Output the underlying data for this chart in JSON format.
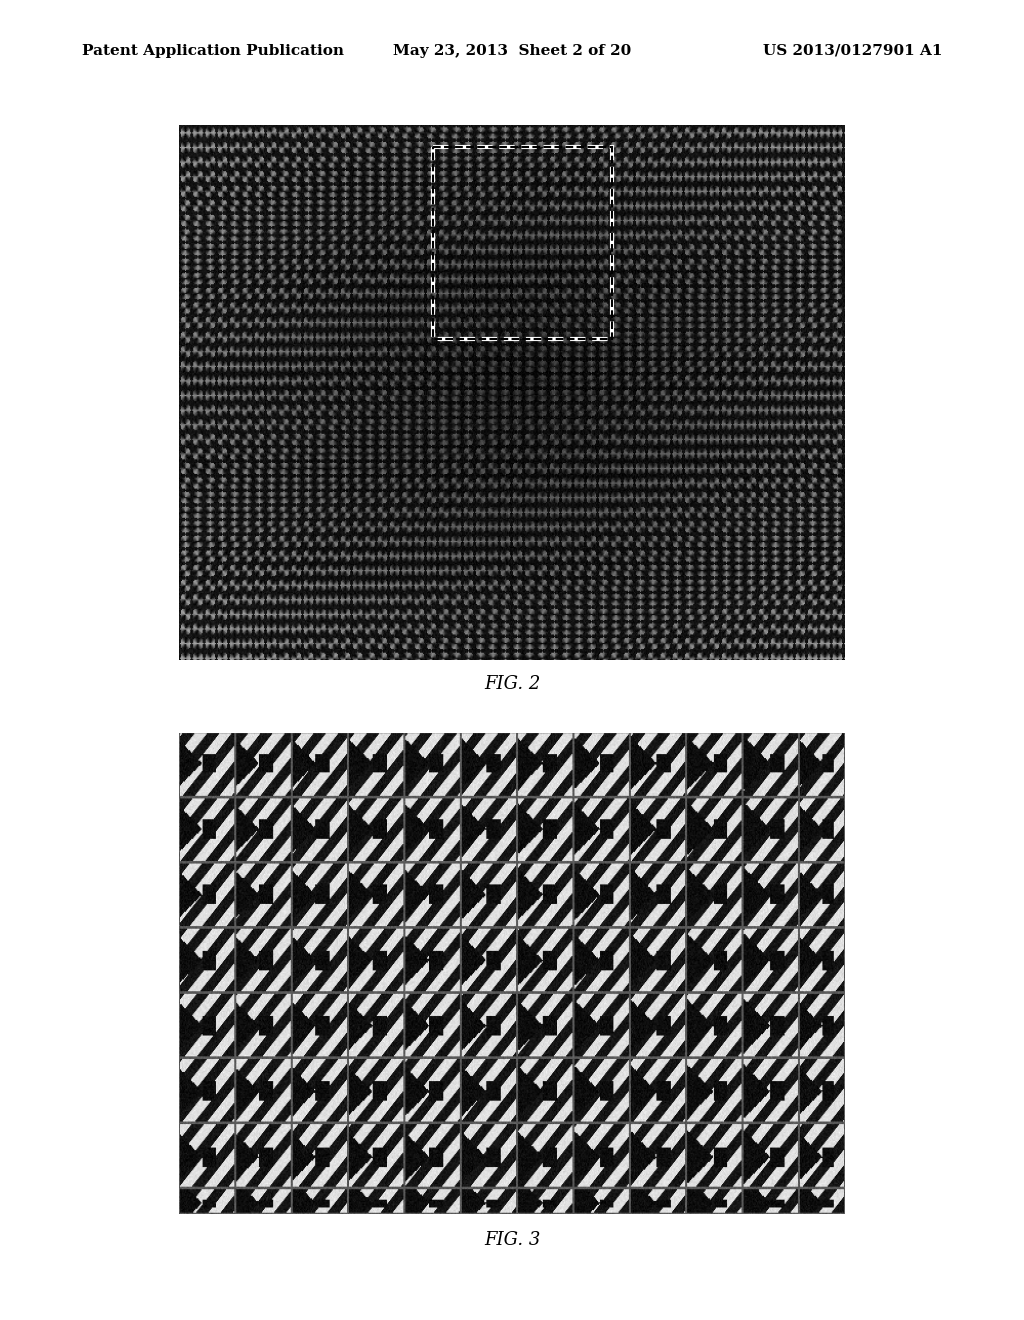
{
  "background_color": "#ffffff",
  "header_left": "Patent Application Publication",
  "header_center": "May 23, 2013  Sheet 2 of 20",
  "header_right": "US 2013/0127901 A1",
  "header_fontsize": 11,
  "fig2_label": "FIG. 2",
  "fig3_label": "FIG. 3",
  "label_fontsize": 13
}
